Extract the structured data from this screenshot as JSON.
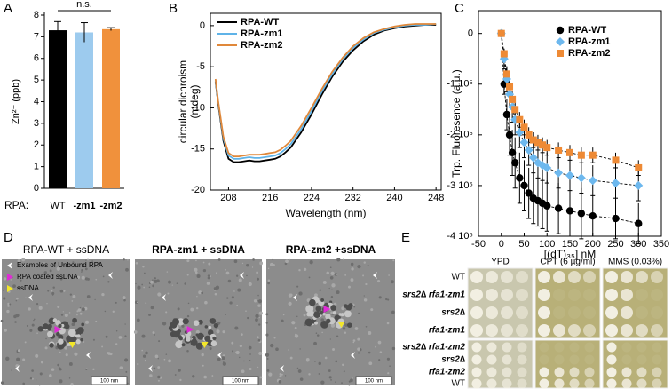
{
  "panel_labels": [
    "A",
    "B",
    "C",
    "D",
    "E"
  ],
  "chart_data": [
    {
      "type": "bar",
      "ylabel": "Zn²⁺ (ppb)",
      "xlabel": "RPA:",
      "annotation": "n.s.",
      "categories": [
        "WT",
        "-zm1",
        "-zm2"
      ],
      "values": [
        7.3,
        7.2,
        7.35
      ],
      "errors": [
        0.4,
        0.45,
        0.07
      ],
      "colors": [
        "#000000",
        "#9dcbee",
        "#f0913c"
      ],
      "ylim": [
        0,
        8
      ],
      "yticks": [
        0,
        1,
        2,
        3,
        4,
        5,
        6,
        7,
        8
      ]
    },
    {
      "type": "line",
      "xlabel": "Wavelength (nm)",
      "ylabel": [
        "circular dichroism",
        "(mdeg)"
      ],
      "xlim": [
        204.5,
        249
      ],
      "ylim": [
        -20,
        1.5
      ],
      "xticks": [
        208,
        216,
        224,
        232,
        240,
        248
      ],
      "yticks": [
        0,
        -5,
        -10,
        -15,
        -20
      ],
      "x": [
        205.5,
        206,
        207,
        208,
        209,
        210,
        211,
        212,
        213,
        214,
        215,
        216,
        217,
        218,
        219,
        220,
        222,
        224,
        226,
        228,
        230,
        232,
        234,
        236,
        238,
        240,
        242,
        244,
        246,
        248
      ],
      "series": [
        {
          "name": "RPA-WT",
          "color": "#000000",
          "values": [
            -6.8,
            -9.5,
            -14,
            -16.2,
            -16.6,
            -16.6,
            -16.5,
            -16.4,
            -16.5,
            -16.5,
            -16.4,
            -16.3,
            -16.2,
            -15.9,
            -15.4,
            -14.8,
            -13,
            -10.8,
            -8.4,
            -6.2,
            -4.4,
            -3,
            -1.9,
            -1.1,
            -0.6,
            -0.3,
            -0.1,
            0,
            0.1,
            0.1
          ]
        },
        {
          "name": "RPA-zm1",
          "color": "#5fb3e8",
          "values": [
            -6.6,
            -9.3,
            -13.7,
            -15.8,
            -16.2,
            -16.2,
            -16.1,
            -16,
            -16.1,
            -16.1,
            -16,
            -15.9,
            -15.8,
            -15.5,
            -15,
            -14.4,
            -12.6,
            -10.4,
            -8,
            -5.9,
            -4.1,
            -2.7,
            -1.7,
            -0.9,
            -0.5,
            -0.2,
            0,
            0.1,
            0.1,
            0.2
          ]
        },
        {
          "name": "RPA-zm2",
          "color": "#e0883a",
          "values": [
            -6.5,
            -9.2,
            -13.5,
            -15.5,
            -15.9,
            -15.9,
            -15.8,
            -15.7,
            -15.7,
            -15.7,
            -15.6,
            -15.5,
            -15.4,
            -15.1,
            -14.6,
            -14,
            -12.2,
            -10,
            -7.7,
            -5.6,
            -3.9,
            -2.5,
            -1.5,
            -0.8,
            -0.4,
            -0.1,
            0.1,
            0.2,
            0.2,
            0.2
          ]
        }
      ]
    },
    {
      "type": "scatter",
      "xlabel": "[(dT)₃₅] nM",
      "ylabel": "Trp. Fluoresence (a.u.)",
      "xlim": [
        -50,
        350
      ],
      "ylim": [
        -400000,
        45000
      ],
      "xticks": [
        -50,
        0,
        50,
        100,
        150,
        200,
        250,
        300,
        350
      ],
      "yticks": [
        0,
        {
          "value": -100000,
          "label": "-1 10⁵"
        },
        {
          "value": -200000,
          "label": "-2 10⁵"
        },
        {
          "value": -300000,
          "label": "-3 10⁵"
        },
        {
          "value": -400000,
          "label": "-4 10⁵"
        }
      ],
      "x": [
        0,
        6,
        12,
        18,
        24,
        30,
        40,
        50,
        60,
        70,
        80,
        90,
        100,
        125,
        150,
        175,
        200,
        250,
        300
      ],
      "series": [
        {
          "name": "RPA-WT",
          "color": "#000000",
          "marker": "circle",
          "values": [
            0,
            -100000,
            -160000,
            -200000,
            -235000,
            -255000,
            -285000,
            -300000,
            -315000,
            -325000,
            -330000,
            -335000,
            -340000,
            -345000,
            -350000,
            -355000,
            -360000,
            -365000,
            -375000
          ],
          "errors": [
            0,
            20000,
            30000,
            40000,
            45000,
            50000,
            50000,
            50000,
            50000,
            50000,
            50000,
            50000,
            50000,
            50000,
            50000,
            50000,
            40000,
            40000,
            40000
          ]
        },
        {
          "name": "RPA-zm1",
          "color": "#6db8ee",
          "marker": "diamond",
          "values": [
            0,
            -50000,
            -90000,
            -120000,
            -145000,
            -170000,
            -195000,
            -215000,
            -230000,
            -245000,
            -255000,
            -260000,
            -265000,
            -275000,
            -280000,
            -285000,
            -290000,
            -295000,
            -300000
          ],
          "errors": [
            0,
            20000,
            25000,
            25000,
            30000,
            30000,
            30000,
            30000,
            30000,
            30000,
            30000,
            30000,
            30000,
            30000,
            30000,
            30000,
            30000,
            30000,
            30000
          ]
        },
        {
          "name": "RPA-zm2",
          "color": "#ee8a35",
          "marker": "square",
          "values": [
            0,
            -40000,
            -80000,
            -105000,
            -130000,
            -150000,
            -170000,
            -185000,
            -200000,
            -210000,
            -215000,
            -220000,
            -225000,
            -230000,
            -235000,
            -240000,
            -240000,
            -250000,
            -265000
          ],
          "errors": [
            0,
            10000,
            15000,
            15000,
            15000,
            15000,
            15000,
            15000,
            15000,
            15000,
            15000,
            15000,
            15000,
            15000,
            15000,
            15000,
            15000,
            15000,
            15000
          ]
        }
      ]
    }
  ],
  "panel_d": {
    "legend": [
      "Examples of Unbound RPA",
      "RPA coated ssDNA",
      "ssDNA"
    ],
    "images": [
      {
        "title": "RPA-WT + ssDNA",
        "color": "#000000",
        "scale_bar": "100 nm"
      },
      {
        "title": "RPA-zm1 + ssDNA",
        "color": "#6db8ee",
        "scale_bar": "100 nm"
      },
      {
        "title": "RPA-zm2 +ssDNA",
        "color": "#e07a2a",
        "scale_bar": "100 nm"
      }
    ]
  },
  "panel_e": {
    "plates": [
      "YPD",
      "CPT (6 µg/ml)",
      "MMS (0.03%)"
    ],
    "groups": [
      [
        {
          "label": "WT",
          "color": "#222222",
          "italic": false
        },
        {
          "label": "srs2∆ rfa1-zm1",
          "color": "#2b3fc4",
          "italic": true
        },
        {
          "label": "srs2∆",
          "color": "#8a8a8a",
          "italic": true
        },
        {
          "label": "rfa1-zm1",
          "color": "#5fb3e8",
          "italic": true
        }
      ],
      [
        {
          "label": "srs2∆ rfa1-zm2",
          "color": "#a01818",
          "italic": true
        },
        {
          "label": "srs2∆",
          "color": "#8a8a8a",
          "italic": true
        },
        {
          "label": "rfa1-zm2",
          "color": "#e07a2a",
          "italic": true
        },
        {
          "label": "WT",
          "color": "#222222",
          "italic": false
        }
      ]
    ]
  }
}
